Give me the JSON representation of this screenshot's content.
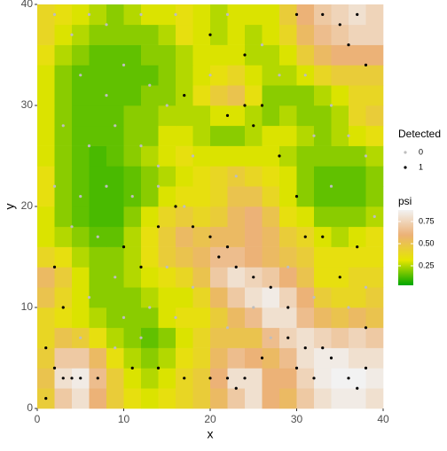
{
  "chart_data": {
    "type": "heatmap",
    "xlabel": "x",
    "ylabel": "y",
    "xlim": [
      0,
      40
    ],
    "ylim": [
      0,
      40
    ],
    "xticks": [
      0,
      10,
      20,
      30,
      40
    ],
    "yticks": [
      0,
      10,
      20,
      30,
      40
    ],
    "x": [
      1,
      3,
      5,
      7,
      9,
      11,
      13,
      15,
      17,
      19,
      21,
      23,
      25,
      27,
      29,
      31,
      33,
      35,
      37,
      39
    ],
    "y": [
      1,
      3,
      5,
      7,
      9,
      11,
      13,
      15,
      17,
      19,
      21,
      23,
      25,
      27,
      29,
      31,
      33,
      35,
      37,
      39
    ],
    "z": [
      [
        0.45,
        0.7,
        0.8,
        0.6,
        0.45,
        0.35,
        0.3,
        0.35,
        0.4,
        0.45,
        0.55,
        0.7,
        0.8,
        0.6,
        0.55,
        0.7,
        0.8,
        0.85,
        0.85,
        0.8
      ],
      [
        0.5,
        0.8,
        0.85,
        0.65,
        0.45,
        0.3,
        0.25,
        0.3,
        0.4,
        0.45,
        0.6,
        0.8,
        0.8,
        0.6,
        0.6,
        0.75,
        0.85,
        0.88,
        0.88,
        0.85
      ],
      [
        0.45,
        0.7,
        0.7,
        0.55,
        0.35,
        0.25,
        0.2,
        0.25,
        0.35,
        0.4,
        0.55,
        0.65,
        0.6,
        0.55,
        0.65,
        0.8,
        0.85,
        0.85,
        0.8,
        0.8
      ],
      [
        0.4,
        0.5,
        0.45,
        0.35,
        0.25,
        0.2,
        0.15,
        0.2,
        0.3,
        0.4,
        0.5,
        0.5,
        0.5,
        0.65,
        0.75,
        0.8,
        0.75,
        0.7,
        0.75,
        0.7
      ],
      [
        0.4,
        0.35,
        0.3,
        0.25,
        0.2,
        0.2,
        0.2,
        0.3,
        0.35,
        0.35,
        0.45,
        0.55,
        0.65,
        0.8,
        0.8,
        0.65,
        0.55,
        0.5,
        0.55,
        0.5
      ],
      [
        0.5,
        0.4,
        0.3,
        0.2,
        0.2,
        0.2,
        0.25,
        0.3,
        0.3,
        0.4,
        0.55,
        0.7,
        0.8,
        0.85,
        0.75,
        0.6,
        0.45,
        0.4,
        0.4,
        0.45
      ],
      [
        0.55,
        0.45,
        0.3,
        0.2,
        0.2,
        0.25,
        0.3,
        0.35,
        0.4,
        0.5,
        0.7,
        0.8,
        0.75,
        0.7,
        0.6,
        0.5,
        0.35,
        0.35,
        0.4,
        0.4
      ],
      [
        0.4,
        0.35,
        0.25,
        0.2,
        0.2,
        0.25,
        0.35,
        0.45,
        0.5,
        0.55,
        0.65,
        0.65,
        0.6,
        0.55,
        0.5,
        0.45,
        0.35,
        0.35,
        0.35,
        0.35
      ],
      [
        0.3,
        0.25,
        0.2,
        0.15,
        0.15,
        0.25,
        0.35,
        0.45,
        0.55,
        0.5,
        0.55,
        0.55,
        0.6,
        0.55,
        0.45,
        0.4,
        0.3,
        0.25,
        0.3,
        0.35
      ],
      [
        0.3,
        0.2,
        0.15,
        0.12,
        0.12,
        0.2,
        0.3,
        0.4,
        0.45,
        0.4,
        0.45,
        0.55,
        0.6,
        0.5,
        0.35,
        0.3,
        0.2,
        0.2,
        0.2,
        0.25
      ],
      [
        0.35,
        0.2,
        0.15,
        0.12,
        0.12,
        0.15,
        0.2,
        0.3,
        0.35,
        0.35,
        0.4,
        0.5,
        0.5,
        0.4,
        0.3,
        0.2,
        0.15,
        0.15,
        0.15,
        0.2
      ],
      [
        0.35,
        0.2,
        0.15,
        0.12,
        0.12,
        0.15,
        0.2,
        0.25,
        0.3,
        0.35,
        0.4,
        0.45,
        0.4,
        0.35,
        0.3,
        0.2,
        0.15,
        0.15,
        0.15,
        0.2
      ],
      [
        0.3,
        0.2,
        0.15,
        0.12,
        0.15,
        0.2,
        0.25,
        0.3,
        0.35,
        0.3,
        0.3,
        0.3,
        0.3,
        0.3,
        0.25,
        0.2,
        0.2,
        0.2,
        0.2,
        0.25
      ],
      [
        0.3,
        0.2,
        0.15,
        0.15,
        0.15,
        0.2,
        0.2,
        0.3,
        0.3,
        0.25,
        0.2,
        0.2,
        0.25,
        0.3,
        0.3,
        0.25,
        0.2,
        0.25,
        0.3,
        0.35
      ],
      [
        0.3,
        0.2,
        0.15,
        0.15,
        0.15,
        0.2,
        0.2,
        0.25,
        0.25,
        0.25,
        0.3,
        0.3,
        0.25,
        0.2,
        0.25,
        0.2,
        0.2,
        0.25,
        0.4,
        0.45
      ],
      [
        0.3,
        0.2,
        0.15,
        0.15,
        0.15,
        0.15,
        0.2,
        0.2,
        0.25,
        0.35,
        0.45,
        0.5,
        0.35,
        0.2,
        0.2,
        0.2,
        0.25,
        0.3,
        0.4,
        0.4
      ],
      [
        0.3,
        0.2,
        0.15,
        0.15,
        0.15,
        0.15,
        0.15,
        0.2,
        0.25,
        0.3,
        0.35,
        0.4,
        0.3,
        0.25,
        0.25,
        0.3,
        0.4,
        0.45,
        0.45,
        0.45
      ],
      [
        0.35,
        0.25,
        0.2,
        0.15,
        0.15,
        0.15,
        0.2,
        0.2,
        0.25,
        0.3,
        0.3,
        0.3,
        0.25,
        0.25,
        0.3,
        0.45,
        0.55,
        0.6,
        0.6,
        0.6
      ],
      [
        0.4,
        0.3,
        0.25,
        0.2,
        0.2,
        0.2,
        0.2,
        0.25,
        0.35,
        0.3,
        0.25,
        0.3,
        0.25,
        0.3,
        0.4,
        0.55,
        0.65,
        0.7,
        0.75,
        0.75
      ],
      [
        0.4,
        0.35,
        0.3,
        0.25,
        0.2,
        0.25,
        0.3,
        0.3,
        0.35,
        0.3,
        0.25,
        0.3,
        0.3,
        0.3,
        0.45,
        0.6,
        0.7,
        0.75,
        0.8,
        0.75
      ]
    ],
    "colorbar_title": "psi",
    "zlim": [
      0.03,
      0.88
    ],
    "colors": [
      "#00A600",
      "#E6E600",
      "#ECB176",
      "#F2F2F2"
    ],
    "colorbar_ticks": [
      0.25,
      {
        "value": 0.5,
        "label": "0.50"
      },
      0.75
    ],
    "points": {
      "title": "Detected",
      "series": [
        {
          "name": "0",
          "color": "#bebebe",
          "x": [
            2,
            4,
            6,
            8,
            12,
            16,
            5,
            8,
            10,
            13,
            15,
            3,
            6,
            9,
            12,
            14,
            2,
            5,
            8,
            11,
            14,
            17,
            4,
            7,
            9,
            6,
            10,
            13,
            5,
            9,
            12,
            16,
            18,
            15,
            22,
            25,
            27,
            29,
            32,
            36,
            38,
            34,
            32,
            36,
            38,
            31,
            26,
            22,
            20,
            28,
            18,
            23,
            39,
            34
          ],
          "y": [
            39,
            37,
            39,
            38,
            39,
            39,
            33,
            31,
            34,
            32,
            30,
            28,
            26,
            28,
            26,
            24,
            22,
            21,
            22,
            21,
            22,
            20,
            18,
            17,
            13,
            11,
            9,
            10,
            7,
            6,
            7,
            9,
            12,
            14,
            8,
            10,
            7,
            14,
            11,
            10,
            12,
            22,
            27,
            27,
            25,
            33,
            36,
            39,
            33,
            33,
            25,
            23,
            19,
            30
          ]
        },
        {
          "name": "1",
          "color": "#000000",
          "x": [
            1,
            1,
            3,
            4,
            5,
            2,
            7,
            11,
            14,
            17,
            20,
            22,
            23,
            24,
            26,
            30,
            32,
            34,
            36,
            38,
            37,
            29,
            31,
            33,
            38,
            29,
            27,
            25,
            22,
            21,
            23,
            20,
            18,
            16,
            14,
            10,
            12,
            31,
            30,
            33,
            35,
            37,
            3,
            2,
            22,
            24,
            26,
            28,
            25,
            35,
            36,
            38,
            37,
            33,
            30,
            20,
            17,
            24
          ],
          "y": [
            1,
            6,
            3,
            3,
            3,
            4,
            3,
            4,
            4,
            3,
            3,
            3,
            2,
            3,
            5,
            4,
            3,
            5,
            3,
            4,
            2,
            7,
            6,
            6,
            8,
            10,
            12,
            13,
            16,
            15,
            14,
            17,
            18,
            20,
            18,
            16,
            14,
            17,
            21,
            17,
            13,
            16,
            10,
            14,
            29,
            30,
            30,
            25,
            28,
            38,
            36,
            34,
            39,
            39,
            39,
            37,
            31,
            35
          ]
        }
      ]
    }
  }
}
